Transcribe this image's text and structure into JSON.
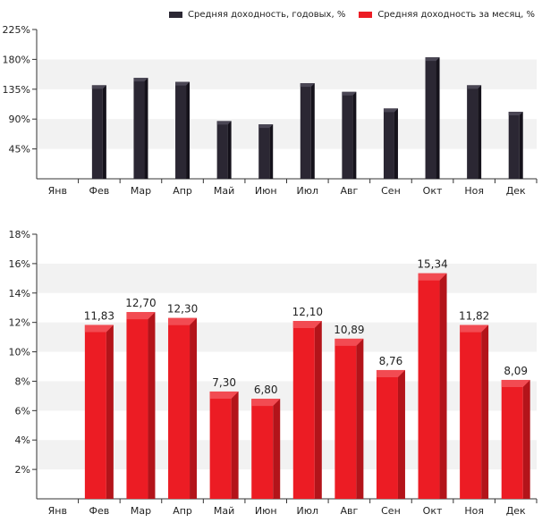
{
  "legend": {
    "annual_label": "Средняя доходность, годовых, %",
    "monthly_label": "Средняя доходность за месяц, %"
  },
  "colors": {
    "annual_front": "#2b2733",
    "annual_side": "#15121b",
    "annual_top": "#4a4654",
    "monthly_front": "#ec1c24",
    "monthly_side": "#b3141a",
    "monthly_top": "#f24b52",
    "band": "#f2f2f2"
  },
  "chart_data": [
    {
      "type": "bar",
      "title": "",
      "categories": [
        "Янв",
        "Фев",
        "Мар",
        "Апр",
        "Май",
        "Июн",
        "Июл",
        "Авг",
        "Сен",
        "Окт",
        "Ноя",
        "Дек"
      ],
      "series": [
        {
          "name": "Средняя доходность, годовых, %",
          "values": [
            null,
            141,
            152,
            146,
            87,
            82,
            144,
            131,
            106,
            183,
            141,
            101
          ]
        }
      ],
      "yticks": [
        "45%",
        "90%",
        "135%",
        "180%",
        "225%"
      ],
      "ylim": [
        0,
        225
      ],
      "grid": "alternating-bands",
      "legend": "top"
    },
    {
      "type": "bar",
      "title": "",
      "categories": [
        "Янв",
        "Фев",
        "Мар",
        "Апр",
        "Май",
        "Июн",
        "Июл",
        "Авг",
        "Сен",
        "Окт",
        "Ноя",
        "Дек"
      ],
      "series": [
        {
          "name": "Средняя доходность за месяц, %",
          "values": [
            null,
            11.83,
            12.7,
            12.3,
            7.3,
            6.8,
            12.1,
            10.89,
            8.76,
            15.34,
            11.82,
            8.09
          ],
          "labels": [
            "",
            "11,83",
            "12,70",
            "12,30",
            "7,30",
            "6,80",
            "12,10",
            "10,89",
            "8,76",
            "15,34",
            "11,82",
            "8,09"
          ]
        }
      ],
      "yticks": [
        "2%",
        "4%",
        "6%",
        "8%",
        "10%",
        "12%",
        "14%",
        "16%",
        "18%"
      ],
      "ylim": [
        0,
        18
      ],
      "grid": "alternating-bands",
      "legend": "top"
    }
  ]
}
